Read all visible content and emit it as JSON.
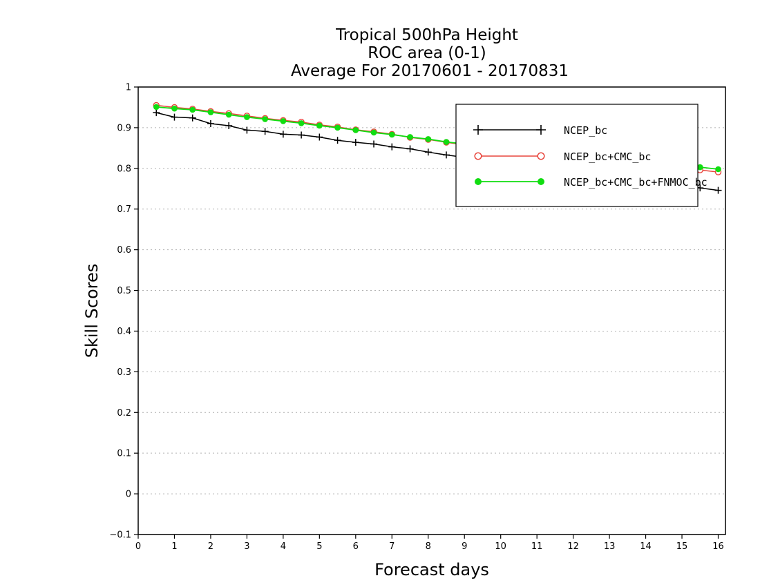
{
  "chart_data": {
    "type": "line",
    "title_lines": [
      "Tropical 500hPa Height",
      "ROC area (0-1)",
      "Average For 20170601 - 20170831"
    ],
    "xlabel": "Forecast days",
    "ylabel": "Skill Scores",
    "xlim": [
      0,
      16.2
    ],
    "ylim": [
      -0.1,
      1
    ],
    "xticks": [
      "0",
      "1",
      "2",
      "3",
      "4",
      "5",
      "6",
      "7",
      "8",
      "9",
      "10",
      "11",
      "12",
      "13",
      "14",
      "15",
      "16"
    ],
    "yticks": [
      "1",
      "0.9",
      "0.8",
      "0.7",
      "0.6",
      "0.5",
      "0.4",
      "0.3",
      "0.2",
      "0.1",
      "0",
      "−0.1"
    ],
    "grid": true,
    "legend_position": "top-right",
    "x": [
      0.5,
      1,
      1.5,
      2,
      2.5,
      3,
      3.5,
      4,
      4.5,
      5,
      5.5,
      6,
      6.5,
      7,
      7.5,
      8,
      8.5,
      9,
      9.5,
      10,
      10.5,
      11,
      11.5,
      12,
      12.5,
      13,
      13.5,
      14,
      14.5,
      15,
      15.5,
      16
    ],
    "series": [
      {
        "name": "NCEP_bc",
        "color": "#000000",
        "marker": "plus",
        "values": [
          0.937,
          0.926,
          0.924,
          0.91,
          0.905,
          0.894,
          0.891,
          0.884,
          0.882,
          0.877,
          0.869,
          0.864,
          0.86,
          0.853,
          0.848,
          0.84,
          0.833,
          0.827,
          0.822,
          0.817,
          0.812,
          0.806,
          0.801,
          0.795,
          0.789,
          0.783,
          0.777,
          0.771,
          0.766,
          0.76,
          0.752,
          0.746
        ]
      },
      {
        "name": "NCEP_bc+CMC_bc",
        "color": "#e8453c",
        "marker": "open-circle",
        "values": [
          0.955,
          0.95,
          0.946,
          0.94,
          0.935,
          0.929,
          0.923,
          0.918,
          0.914,
          0.907,
          0.902,
          0.895,
          0.89,
          0.884,
          0.876,
          0.871,
          0.864,
          0.858,
          0.852,
          0.846,
          0.841,
          0.836,
          0.831,
          0.826,
          0.822,
          0.818,
          0.814,
          0.81,
          0.806,
          0.802,
          0.796,
          0.791
        ]
      },
      {
        "name": "NCEP_bc+CMC_bc+FNMOC_bc",
        "color": "#11dd11",
        "marker": "filled-circle",
        "values": [
          0.951,
          0.947,
          0.944,
          0.938,
          0.932,
          0.926,
          0.921,
          0.916,
          0.911,
          0.905,
          0.9,
          0.894,
          0.888,
          0.883,
          0.877,
          0.872,
          0.865,
          0.86,
          0.855,
          0.85,
          0.845,
          0.84,
          0.836,
          0.832,
          0.828,
          0.824,
          0.82,
          0.816,
          0.812,
          0.808,
          0.803,
          0.798
        ]
      }
    ]
  }
}
